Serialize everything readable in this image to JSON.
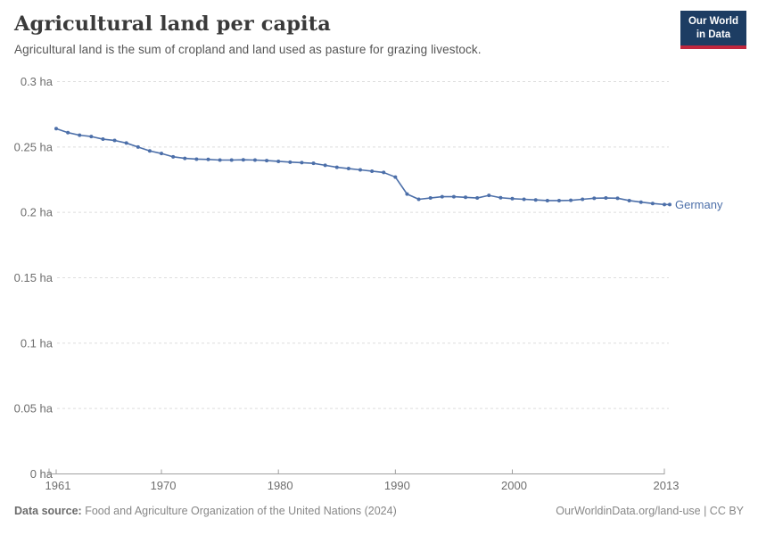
{
  "header": {
    "title": "Agricultural land per capita",
    "subtitle": "Agricultural land is the sum of cropland and land used as pasture for grazing livestock.",
    "logo": {
      "line1": "Our World",
      "line2": "in Data",
      "bg_color": "#1d3d63",
      "accent_color": "#c0273e"
    }
  },
  "chart_data": {
    "type": "line",
    "title": "Agricultural land per capita",
    "unit": "ha",
    "xlabel": "",
    "ylabel": "",
    "xlim": [
      1961,
      2013
    ],
    "ylim": [
      0,
      0.3
    ],
    "grid": true,
    "legend_position": "end-of-line",
    "x_ticks": [
      1961,
      1970,
      1980,
      1990,
      2000,
      2013
    ],
    "x_tick_labels": [
      "1961",
      "1970",
      "1980",
      "1990",
      "2000",
      "2013"
    ],
    "y_ticks": [
      0,
      0.05,
      0.1,
      0.15,
      0.2,
      0.25,
      0.3
    ],
    "y_tick_labels": [
      "0 ha",
      "0.05 ha",
      "0.1 ha",
      "0.15 ha",
      "0.2 ha",
      "0.25 ha",
      "0.3 ha"
    ],
    "series": [
      {
        "name": "Germany",
        "color": "#4C6FA9",
        "x": [
          1961,
          1962,
          1963,
          1964,
          1965,
          1966,
          1967,
          1968,
          1969,
          1970,
          1971,
          1972,
          1973,
          1974,
          1975,
          1976,
          1977,
          1978,
          1979,
          1980,
          1981,
          1982,
          1983,
          1984,
          1985,
          1986,
          1987,
          1988,
          1989,
          1990,
          1991,
          1992,
          1993,
          1994,
          1995,
          1996,
          1997,
          1998,
          1999,
          2000,
          2001,
          2002,
          2003,
          2004,
          2005,
          2006,
          2007,
          2008,
          2009,
          2010,
          2011,
          2012,
          2013
        ],
        "values": [
          0.264,
          0.261,
          0.259,
          0.258,
          0.256,
          0.255,
          0.253,
          0.25,
          0.247,
          0.245,
          0.2425,
          0.2413,
          0.2407,
          0.2405,
          0.24,
          0.24,
          0.2402,
          0.24,
          0.2396,
          0.239,
          0.2384,
          0.238,
          0.2375,
          0.236,
          0.2345,
          0.2335,
          0.2325,
          0.2315,
          0.2305,
          0.227,
          0.214,
          0.21,
          0.211,
          0.212,
          0.212,
          0.2115,
          0.211,
          0.213,
          0.2112,
          0.2105,
          0.21,
          0.2095,
          0.209,
          0.209,
          0.2092,
          0.21,
          0.2108,
          0.211,
          0.2108,
          0.209,
          0.2078,
          0.2068,
          0.206
        ]
      }
    ]
  },
  "footer": {
    "source_label": "Data source:",
    "source_text": "Food and Agriculture Organization of the United Nations (2024)",
    "link_text": "OurWorldinData.org/land-use | CC BY"
  }
}
